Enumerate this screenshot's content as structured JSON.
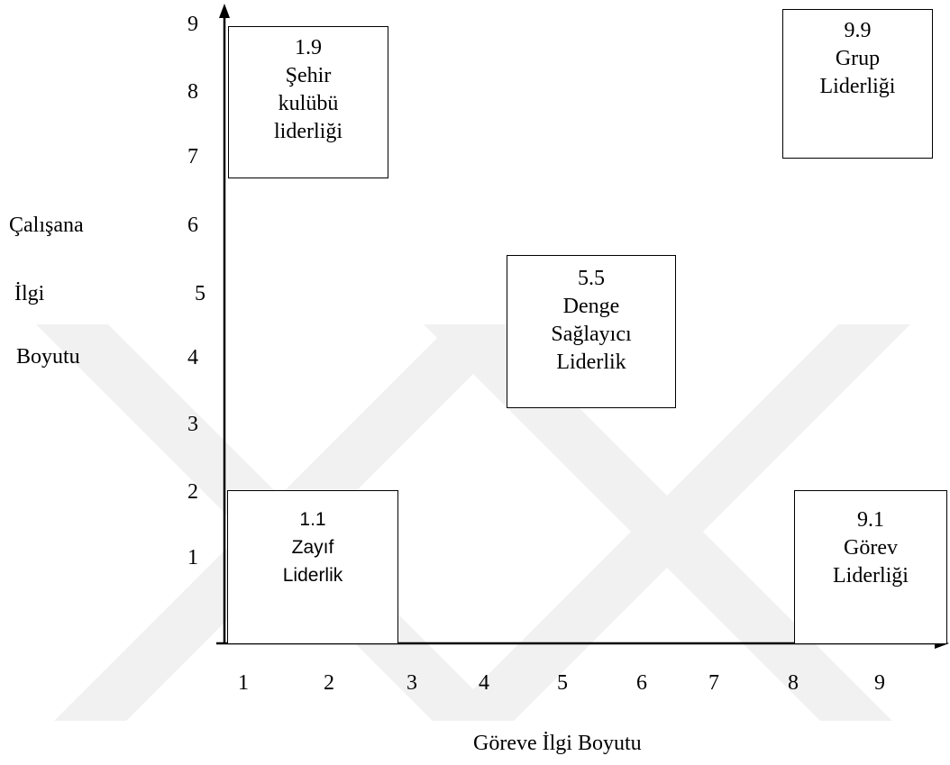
{
  "y_axis": {
    "ticks": [
      "9",
      "8",
      "7",
      "6",
      "5",
      "4",
      "3",
      "2",
      "1"
    ],
    "label_lines": [
      "Çalışana",
      "İlgi",
      "Boyutu"
    ]
  },
  "x_axis": {
    "ticks": [
      "1",
      "2",
      "3",
      "4",
      "5",
      "6",
      "7",
      "8",
      "9"
    ],
    "label": "Göreve İlgi Boyutu"
  },
  "boxes": {
    "b19": {
      "code": "1.9",
      "lines": [
        "Şehir",
        "kulübü",
        "liderliği"
      ]
    },
    "b99": {
      "code": "9.9",
      "lines": [
        "Grup",
        "Liderliği"
      ]
    },
    "b55": {
      "code": "5.5",
      "lines": [
        "Denge",
        "Sağlayıcı",
        "Liderlik"
      ]
    },
    "b11": {
      "code": "1.1",
      "lines": [
        "Zayıf",
        "Liderlik"
      ]
    },
    "b91": {
      "code": "9.1",
      "lines": [
        "Görev",
        "Liderliği"
      ]
    }
  },
  "colors": {
    "ink": "#000000",
    "watermark": "#f1f1f1"
  }
}
